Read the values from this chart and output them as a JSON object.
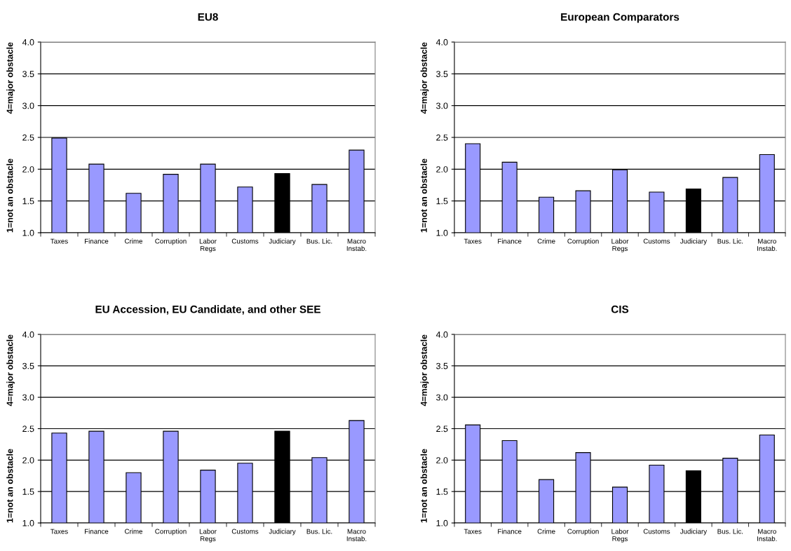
{
  "chart_data": [
    {
      "type": "bar",
      "title": "EU8",
      "ylabel": "1=not an obstacle",
      "annotations": [
        "4=major obstacle"
      ],
      "categories": [
        "Taxes",
        "Finance",
        "Crime",
        "Corruption",
        "Labor\nRegs",
        "Customs",
        "Judiciary",
        "Bus. Lic.",
        "Macro\nInstab."
      ],
      "values": [
        2.49,
        2.08,
        1.62,
        1.92,
        2.08,
        1.72,
        1.93,
        1.76,
        2.3
      ],
      "colors": [
        "#9999ff",
        "#9999ff",
        "#9999ff",
        "#9999ff",
        "#9999ff",
        "#9999ff",
        "#000000",
        "#9999ff",
        "#9999ff"
      ],
      "ylim": [
        1.0,
        4.0
      ],
      "yticks": [
        {
          "value": 1.0,
          "label": "1.0"
        },
        1.5,
        {
          "value": 2.0,
          "label": "2.0"
        },
        2.5,
        {
          "value": 3.0,
          "label": "3.0"
        },
        3.5,
        {
          "value": 4.0,
          "label": "4.0"
        }
      ],
      "grid": "y"
    },
    {
      "type": "bar",
      "title": "European Comparators",
      "ylabel": "1=not an obstacle",
      "annotations": [
        "4=major obstacle"
      ],
      "categories": [
        "Taxes",
        "Finance",
        "Crime",
        "Corruption",
        "Labor\nRegs",
        "Customs",
        "Judiciary",
        "Bus. Lic.",
        "Macro\nInstab."
      ],
      "values": [
        2.4,
        2.11,
        1.56,
        1.66,
        1.99,
        1.64,
        1.69,
        1.87,
        2.23
      ],
      "colors": [
        "#9999ff",
        "#9999ff",
        "#9999ff",
        "#9999ff",
        "#9999ff",
        "#9999ff",
        "#000000",
        "#9999ff",
        "#9999ff"
      ],
      "ylim": [
        1.0,
        4.0
      ],
      "yticks": [
        {
          "value": 1.0,
          "label": "1.0"
        },
        1.5,
        {
          "value": 2.0,
          "label": "2.0"
        },
        2.5,
        {
          "value": 3.0,
          "label": "3.0"
        },
        3.5,
        {
          "value": 4.0,
          "label": "4.0"
        }
      ],
      "grid": "y"
    },
    {
      "type": "bar",
      "title": "EU Accession, EU Candidate, and other SEE",
      "ylabel": "1=not an obstacle",
      "annotations": [
        "4=major obstacle"
      ],
      "categories": [
        "Taxes",
        "Finance",
        "Crime",
        "Corruption",
        "Labor\nRegs",
        "Customs",
        "Judiciary",
        "Bus. Lic.",
        "Macro\nInstab."
      ],
      "values": [
        2.43,
        2.46,
        1.8,
        2.46,
        1.84,
        1.95,
        2.46,
        2.04,
        2.63
      ],
      "colors": [
        "#9999ff",
        "#9999ff",
        "#9999ff",
        "#9999ff",
        "#9999ff",
        "#9999ff",
        "#000000",
        "#9999ff",
        "#9999ff"
      ],
      "ylim": [
        1.0,
        4.0
      ],
      "yticks": [
        {
          "value": 1.0,
          "label": "1.0"
        },
        1.5,
        {
          "value": 2.0,
          "label": "2.0"
        },
        2.5,
        {
          "value": 3.0,
          "label": "3.0"
        },
        3.5,
        {
          "value": 4.0,
          "label": "4.0"
        }
      ],
      "grid": "y"
    },
    {
      "type": "bar",
      "title": "CIS",
      "ylabel": "1=not an obstacle",
      "annotations": [
        "4=major obstacle"
      ],
      "categories": [
        "Taxes",
        "Finance",
        "Crime",
        "Corruption",
        "Labor\nRegs",
        "Customs",
        "Judiciary",
        "Bus. Lic.",
        "Macro\nInstab."
      ],
      "values": [
        2.56,
        2.31,
        1.69,
        2.12,
        1.57,
        1.92,
        1.83,
        2.03,
        2.4
      ],
      "colors": [
        "#9999ff",
        "#9999ff",
        "#9999ff",
        "#9999ff",
        "#9999ff",
        "#9999ff",
        "#000000",
        "#9999ff",
        "#9999ff"
      ],
      "ylim": [
        1.0,
        4.0
      ],
      "yticks": [
        {
          "value": 1.0,
          "label": "1.0"
        },
        1.5,
        {
          "value": 2.0,
          "label": "2.0"
        },
        2.5,
        {
          "value": 3.0,
          "label": "3.0"
        },
        3.5,
        {
          "value": 4.0,
          "label": "4.0"
        }
      ],
      "grid": "y"
    }
  ]
}
